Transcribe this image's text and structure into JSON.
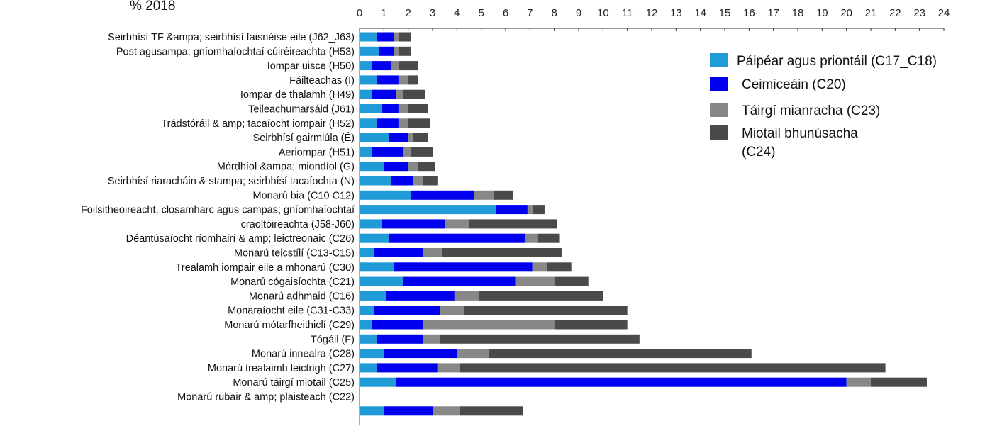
{
  "chart_data": {
    "type": "bar",
    "stacked": true,
    "orientation": "horizontal",
    "title": "% 2018",
    "xlim": [
      0,
      24
    ],
    "x_ticks": [
      0,
      1,
      2,
      3,
      4,
      5,
      6,
      7,
      8,
      9,
      10,
      11,
      12,
      13,
      14,
      15,
      16,
      17,
      18,
      19,
      20,
      21,
      22,
      23,
      24
    ],
    "legend_position": "top-right",
    "series": [
      {
        "name": "Páipéar agus priontáil (C17_C18)",
        "color": "#1f9bd7"
      },
      {
        "name": "Ceimiceáin (C20)",
        "color": "#0000ee"
      },
      {
        "name": "Táirgí mianracha (C23)",
        "color": "#888888"
      },
      {
        "name": "Miotail bhunúsacha (C24)",
        "color": "#4a4a4a"
      }
    ],
    "categories": [
      "Seirbhísí TF &ampa; seirbhísí faisnéise eile (J62_J63)",
      "Post agusampa; gníomhaíochtaí cúiréireachta (H53)",
      "Iompar uisce (H50)",
      "Fáilteachas (I)",
      "Iompar de thalamh (H49)",
      "Teileachumarsáid (J61)",
      "Trádstóráil & amp; tacaíocht iompair (H52)",
      "Seirbhísí gairmiúla (É)",
      "Aeriompar (H51)",
      "Mórdhíol &ampa; miondíol (G)",
      "Seirbhísí riaracháin & stampa; seirbhísí tacaíochta (N)",
      "Monarú bia (C10 C12)",
      "Foilsitheoireacht, closamharc agus campas; gníomhaíochtaí",
      "craoltóireachta (J58-J60)",
      "Déantúsaíocht ríomhairí & amp; leictreonaic (C26)",
      "Monarú teicstílí (C13-C15)",
      "Trealamh iompair eile a mhonarú (C30)",
      "Monarú cógaisíochta (C21)",
      "Monarú adhmaid (C16)",
      "Monaraíocht eile (C31-C33)",
      "Monarú mótarfheithiclí (C29)",
      "Tógáil (F)",
      "Monarú innealra (C28)",
      "Monarú trealaimh leictrigh (C27)",
      "Monarú táirgí miotail (C25)",
      "Monarú rubair & amp; plaisteach (C22)",
      ""
    ],
    "values": [
      [
        0.7,
        0.7,
        0.2,
        0.5
      ],
      [
        0.8,
        0.6,
        0.2,
        0.5
      ],
      [
        0.5,
        0.8,
        0.3,
        0.8
      ],
      [
        0.7,
        0.9,
        0.4,
        0.4
      ],
      [
        0.5,
        1.0,
        0.3,
        0.9
      ],
      [
        0.9,
        0.7,
        0.4,
        0.8
      ],
      [
        0.7,
        0.9,
        0.4,
        0.9
      ],
      [
        1.2,
        0.8,
        0.2,
        0.6
      ],
      [
        0.5,
        1.3,
        0.3,
        0.9
      ],
      [
        1.0,
        1.0,
        0.4,
        0.7
      ],
      [
        1.3,
        0.9,
        0.4,
        0.6
      ],
      [
        2.1,
        2.6,
        0.8,
        0.8
      ],
      [
        5.6,
        1.3,
        0.2,
        0.5
      ],
      [
        0.9,
        2.6,
        1.0,
        3.6
      ],
      [
        1.2,
        5.6,
        0.5,
        0.9
      ],
      [
        0.6,
        2.0,
        0.8,
        4.9
      ],
      [
        1.4,
        5.7,
        0.6,
        1.0
      ],
      [
        1.8,
        4.6,
        1.6,
        1.4
      ],
      [
        1.1,
        2.8,
        1.0,
        5.1
      ],
      [
        0.6,
        2.7,
        1.0,
        6.7
      ],
      [
        0.5,
        2.1,
        5.4,
        3.0
      ],
      [
        0.7,
        1.9,
        0.7,
        8.2
      ],
      [
        1.0,
        3.0,
        1.3,
        10.8
      ],
      [
        0.7,
        2.5,
        0.9,
        17.5
      ],
      [
        1.5,
        18.5,
        1.0,
        2.3
      ],
      [
        0,
        0,
        0,
        0
      ],
      [
        1.0,
        2.0,
        1.1,
        2.6
      ]
    ]
  }
}
